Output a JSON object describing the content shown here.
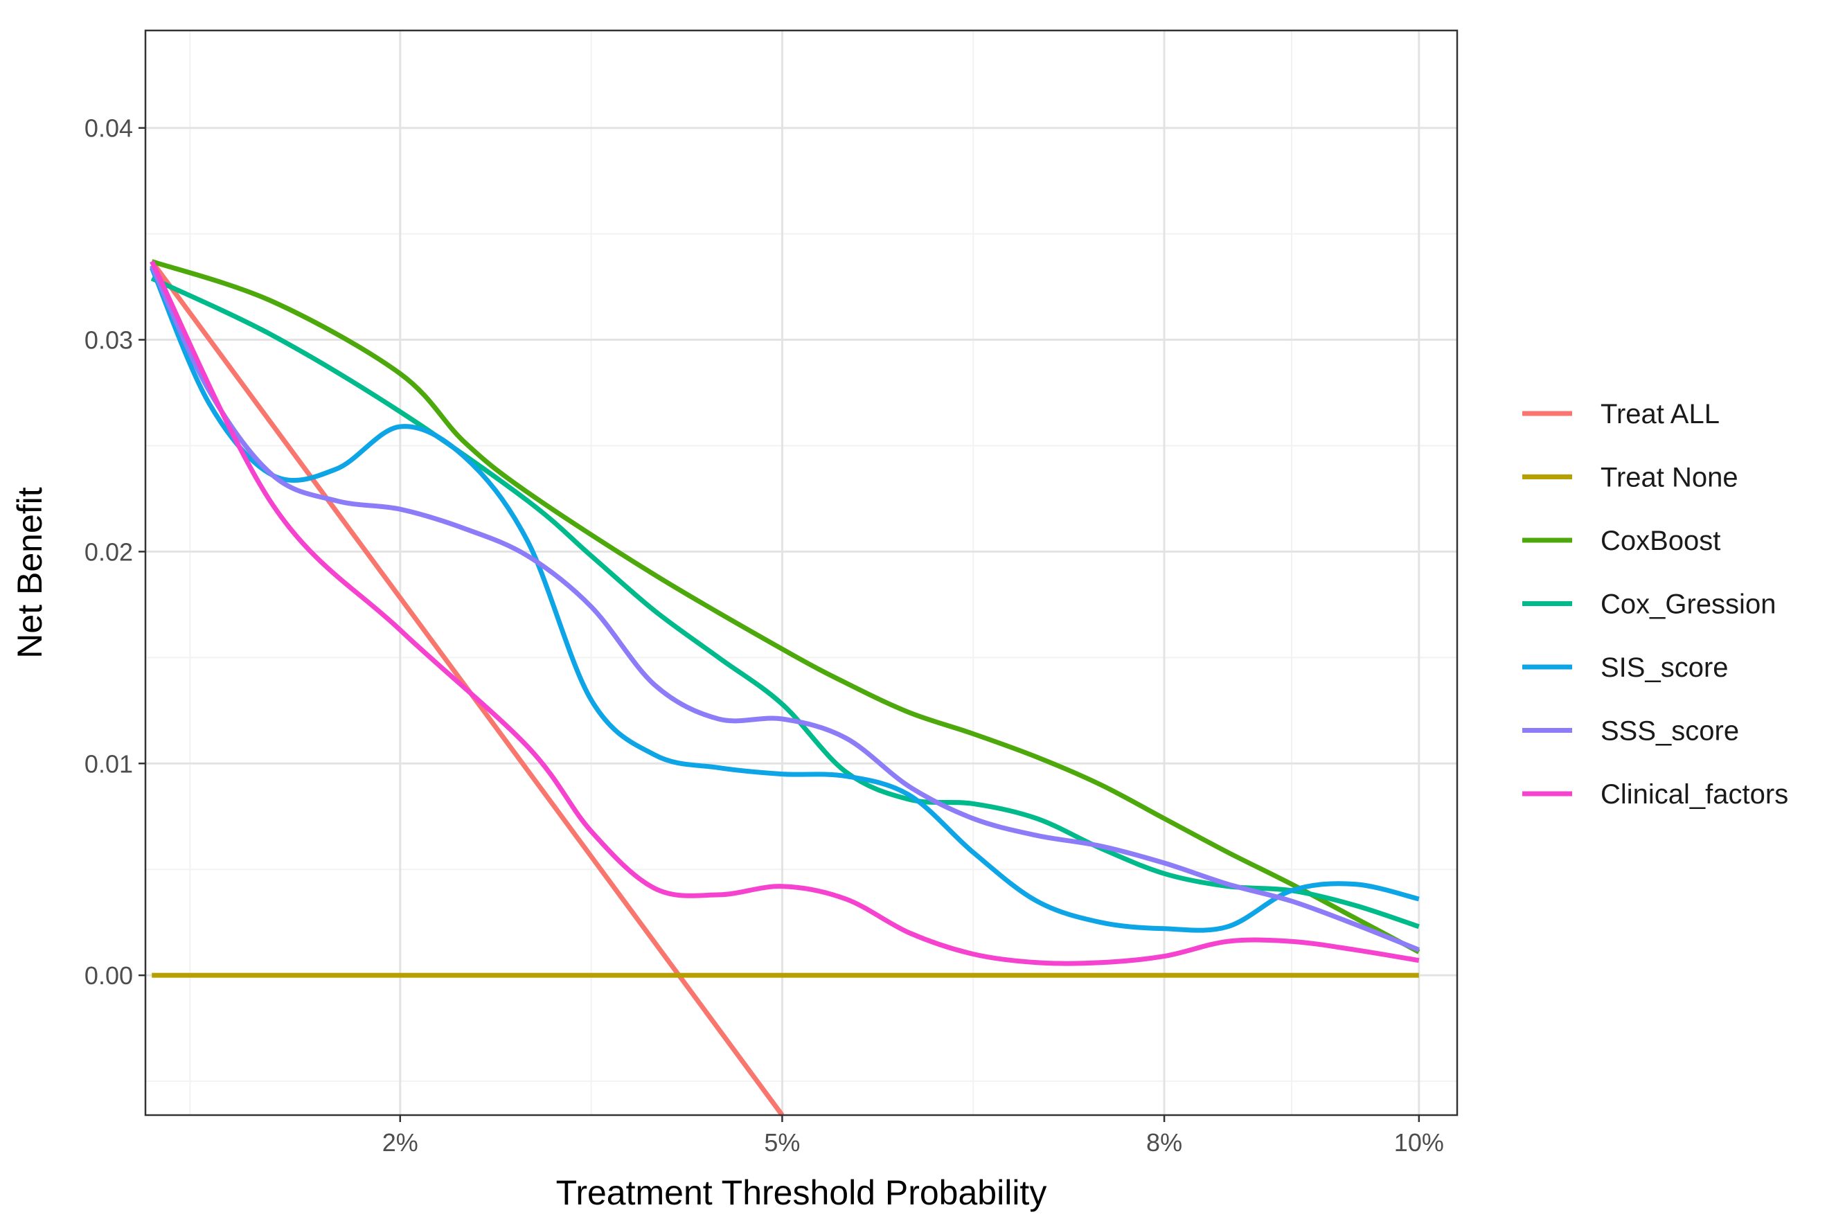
{
  "chart_data": {
    "type": "line",
    "title": "",
    "xlabel": "Treatment Threshold Probability",
    "ylabel": "Net Benefit",
    "xlim": [
      0.0,
      0.103
    ],
    "ylim": [
      -0.0066,
      0.0446
    ],
    "x_ticks": [
      {
        "value": 0.02,
        "label": "2%"
      },
      {
        "value": 0.05,
        "label": "5%"
      },
      {
        "value": 0.08,
        "label": "8%"
      },
      {
        "value": 0.1,
        "label": "10%"
      }
    ],
    "x_minor_ticks": [
      0.0035,
      0.035,
      0.065,
      0.09
    ],
    "y_ticks": [
      {
        "value": 0.0,
        "label": "0.00"
      },
      {
        "value": 0.01,
        "label": "0.01"
      },
      {
        "value": 0.02,
        "label": "0.02"
      },
      {
        "value": 0.03,
        "label": "0.03"
      },
      {
        "value": 0.04,
        "label": "0.04"
      }
    ],
    "y_minor_ticks": [
      -0.005,
      0.005,
      0.015,
      0.025,
      0.035
    ],
    "grid": true,
    "legend_position": "right",
    "series": [
      {
        "name": "Treat ALL",
        "color": "#F8766D",
        "smooth": false,
        "points": [
          [
            0.0005,
            0.0337
          ],
          [
            0.05,
            -0.0066
          ]
        ]
      },
      {
        "name": "Treat None",
        "color": "#B79F00",
        "smooth": false,
        "points": [
          [
            0.0005,
            0.0
          ],
          [
            0.1,
            0.0
          ]
        ]
      },
      {
        "name": "CoxBoost",
        "color": "#4DA80B",
        "smooth": true,
        "points": [
          [
            0.0005,
            0.0337
          ],
          [
            0.01,
            0.0318
          ],
          [
            0.02,
            0.0284
          ],
          [
            0.025,
            0.0252
          ],
          [
            0.03,
            0.0228
          ],
          [
            0.04,
            0.0189
          ],
          [
            0.05,
            0.0154
          ],
          [
            0.055,
            0.0138
          ],
          [
            0.06,
            0.0124
          ],
          [
            0.065,
            0.0114
          ],
          [
            0.07,
            0.0103
          ],
          [
            0.075,
            0.009
          ],
          [
            0.08,
            0.0074
          ],
          [
            0.085,
            0.0058
          ],
          [
            0.09,
            0.0043
          ],
          [
            0.095,
            0.0027
          ],
          [
            0.1,
            0.0011
          ]
        ]
      },
      {
        "name": "Cox_Gression",
        "color": "#00BA8C",
        "smooth": true,
        "points": [
          [
            0.0005,
            0.0329
          ],
          [
            0.01,
            0.0302
          ],
          [
            0.02,
            0.0266
          ],
          [
            0.03,
            0.0224
          ],
          [
            0.035,
            0.0198
          ],
          [
            0.04,
            0.0172
          ],
          [
            0.045,
            0.015
          ],
          [
            0.05,
            0.0128
          ],
          [
            0.055,
            0.0096
          ],
          [
            0.06,
            0.0083
          ],
          [
            0.065,
            0.0081
          ],
          [
            0.07,
            0.0074
          ],
          [
            0.075,
            0.006
          ],
          [
            0.08,
            0.0048
          ],
          [
            0.085,
            0.0042
          ],
          [
            0.09,
            0.004
          ],
          [
            0.095,
            0.0033
          ],
          [
            0.1,
            0.0023
          ]
        ]
      },
      {
        "name": "SIS_score",
        "color": "#0EA5E6",
        "smooth": true,
        "points": [
          [
            0.0005,
            0.0334
          ],
          [
            0.005,
            0.027
          ],
          [
            0.01,
            0.0236
          ],
          [
            0.015,
            0.0239
          ],
          [
            0.02,
            0.0259
          ],
          [
            0.025,
            0.0245
          ],
          [
            0.03,
            0.0205
          ],
          [
            0.035,
            0.013
          ],
          [
            0.04,
            0.0104
          ],
          [
            0.045,
            0.0098
          ],
          [
            0.05,
            0.0095
          ],
          [
            0.055,
            0.0094
          ],
          [
            0.06,
            0.0085
          ],
          [
            0.065,
            0.0058
          ],
          [
            0.07,
            0.0035
          ],
          [
            0.075,
            0.0025
          ],
          [
            0.08,
            0.0022
          ],
          [
            0.085,
            0.0023
          ],
          [
            0.09,
            0.004
          ],
          [
            0.095,
            0.0043
          ],
          [
            0.1,
            0.0036
          ]
        ]
      },
      {
        "name": "SSS_score",
        "color": "#8C7CF7",
        "smooth": true,
        "points": [
          [
            0.0005,
            0.0335
          ],
          [
            0.005,
            0.0276
          ],
          [
            0.01,
            0.0236
          ],
          [
            0.015,
            0.0224
          ],
          [
            0.02,
            0.022
          ],
          [
            0.025,
            0.0211
          ],
          [
            0.03,
            0.0198
          ],
          [
            0.035,
            0.0174
          ],
          [
            0.04,
            0.0137
          ],
          [
            0.045,
            0.0121
          ],
          [
            0.05,
            0.0121
          ],
          [
            0.055,
            0.0112
          ],
          [
            0.06,
            0.0089
          ],
          [
            0.065,
            0.0074
          ],
          [
            0.07,
            0.0066
          ],
          [
            0.075,
            0.0061
          ],
          [
            0.08,
            0.0053
          ],
          [
            0.085,
            0.0043
          ],
          [
            0.09,
            0.0035
          ],
          [
            0.095,
            0.0024
          ],
          [
            0.1,
            0.0012
          ]
        ]
      },
      {
        "name": "Clinical_factors",
        "color": "#F543D0",
        "smooth": true,
        "points": [
          [
            0.0005,
            0.0337
          ],
          [
            0.01,
            0.0222
          ],
          [
            0.02,
            0.0163
          ],
          [
            0.03,
            0.0108
          ],
          [
            0.035,
            0.0068
          ],
          [
            0.04,
            0.0041
          ],
          [
            0.045,
            0.0038
          ],
          [
            0.05,
            0.0042
          ],
          [
            0.055,
            0.0036
          ],
          [
            0.06,
            0.002
          ],
          [
            0.065,
            0.001
          ],
          [
            0.07,
            0.0006
          ],
          [
            0.075,
            0.0006
          ],
          [
            0.08,
            0.0009
          ],
          [
            0.085,
            0.0016
          ],
          [
            0.09,
            0.0016
          ],
          [
            0.095,
            0.0012
          ],
          [
            0.1,
            0.0007
          ]
        ]
      }
    ]
  }
}
